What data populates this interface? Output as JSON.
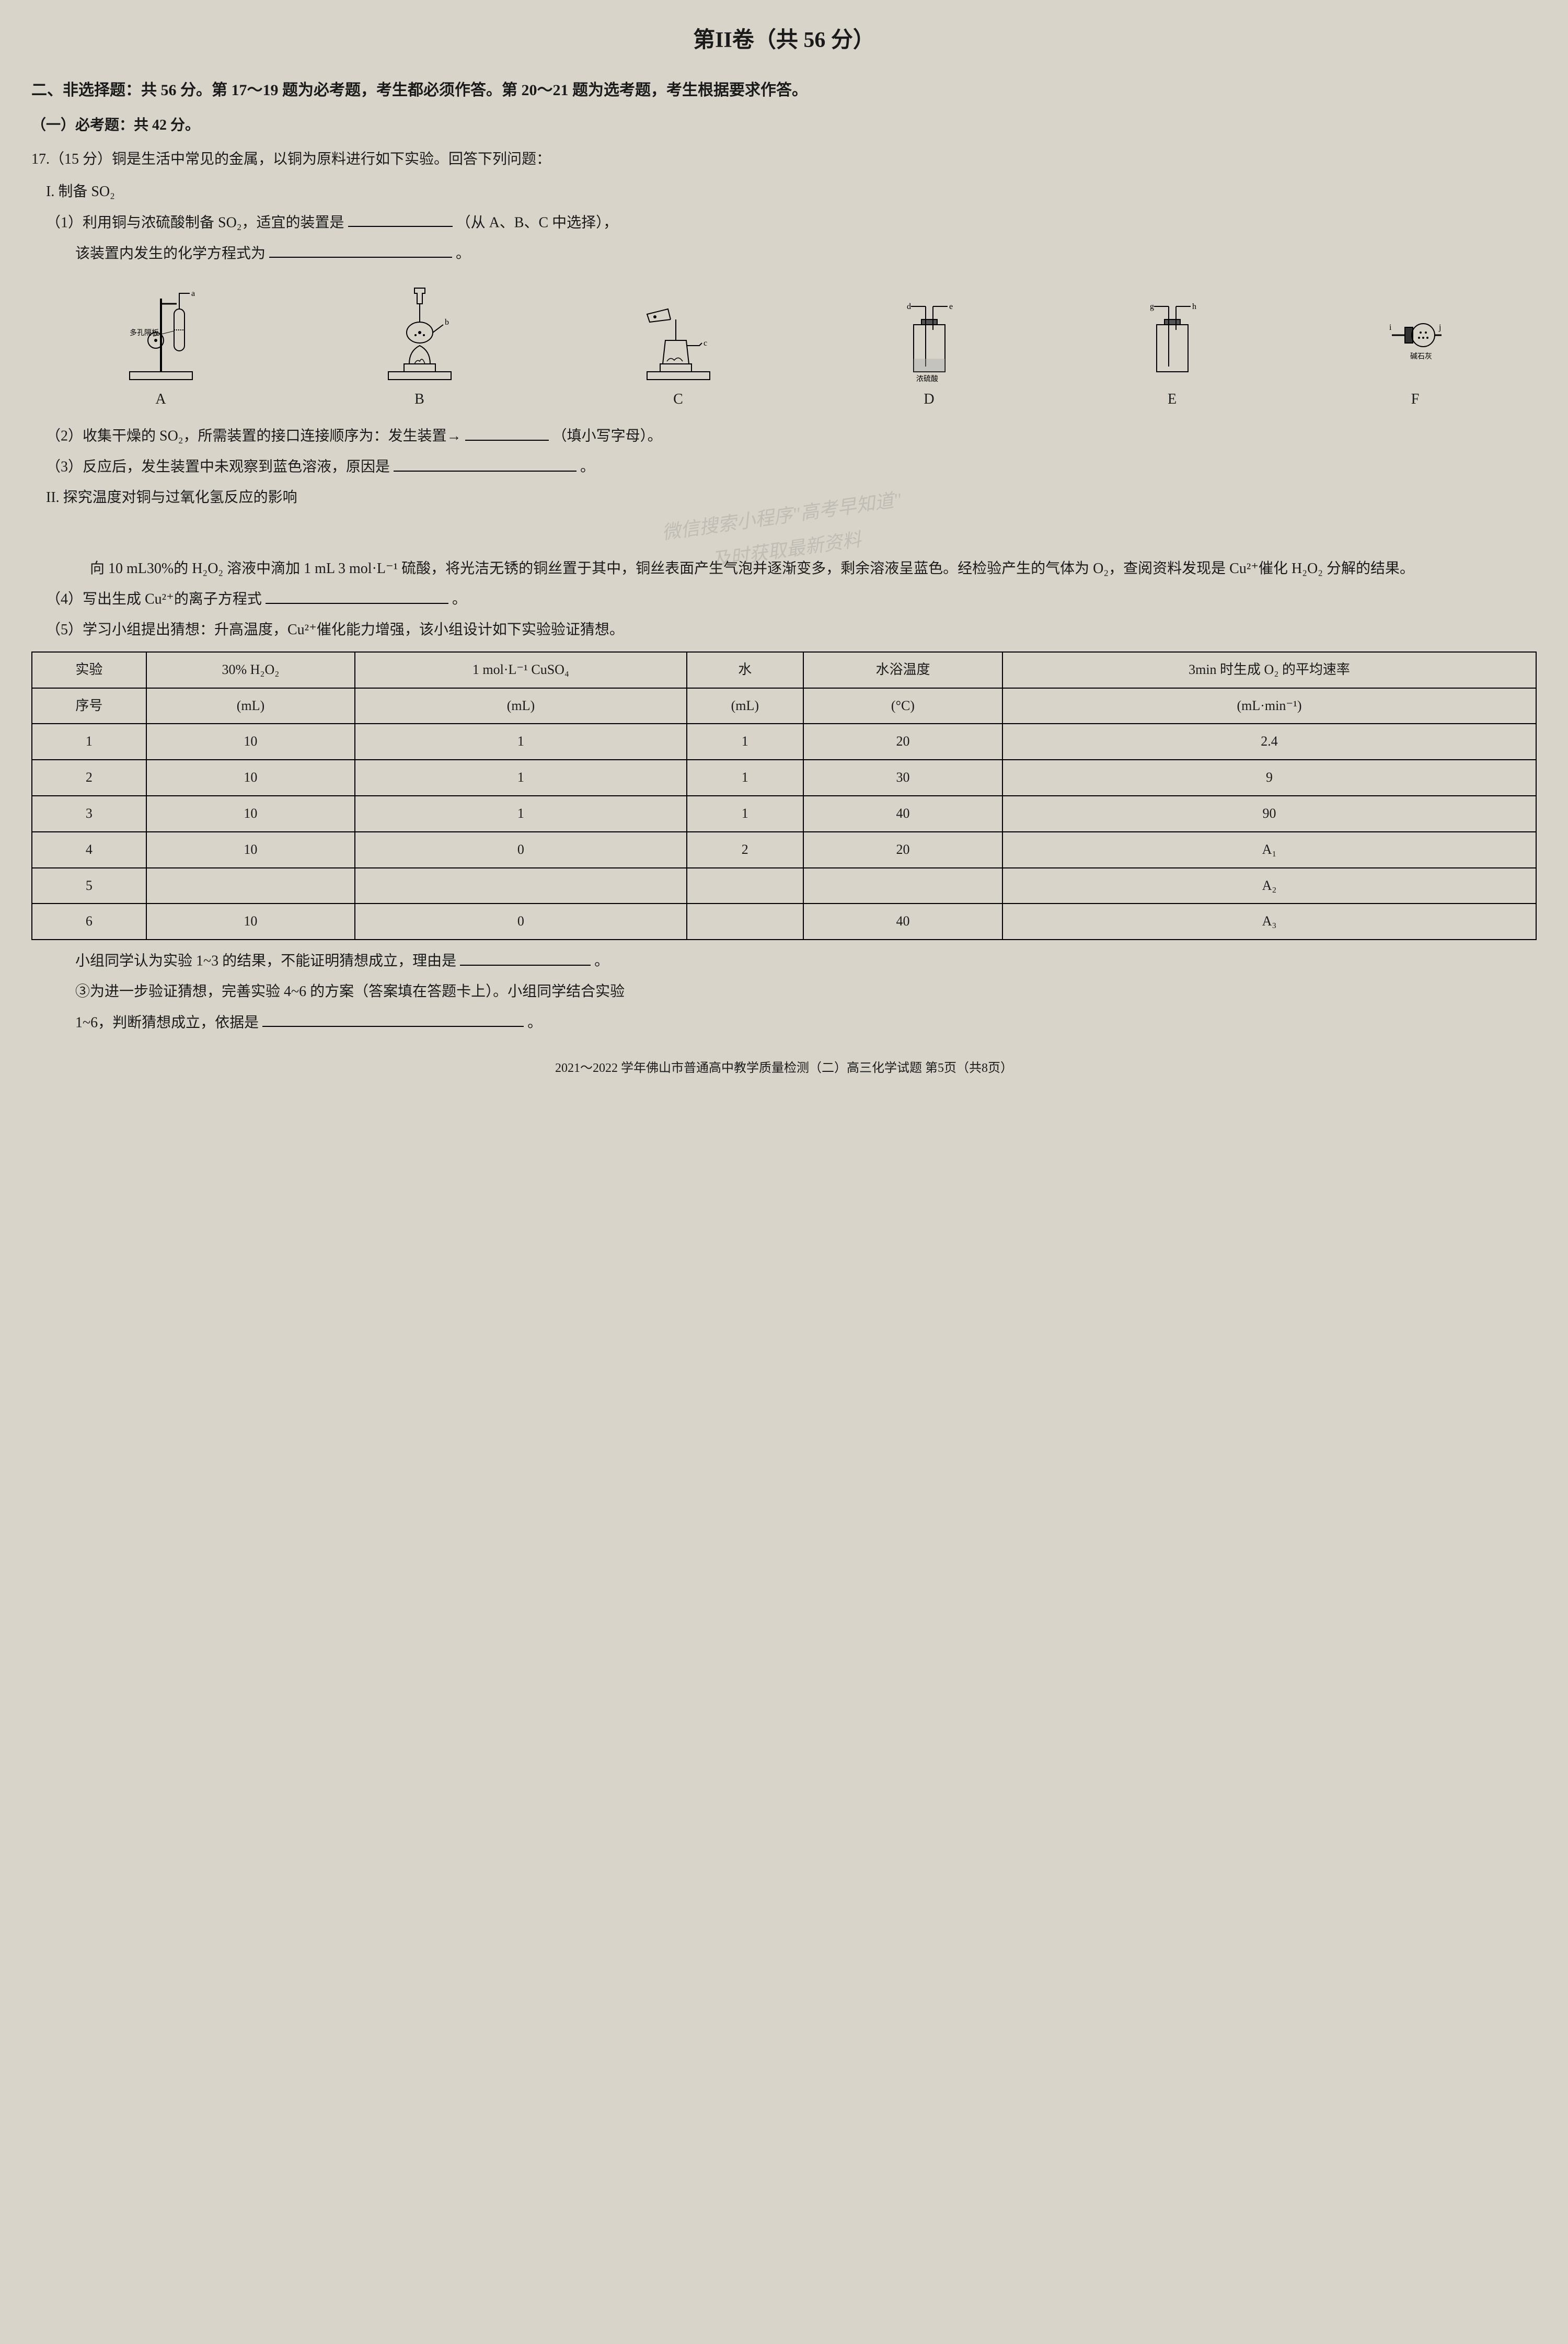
{
  "page": {
    "title": "第II卷（共 56 分）",
    "section_header": "二、非选择题：共 56 分。第 17～19 题为必考题，考生都必须作答。第 20～21 题为选考题，考生根据要求作答。",
    "subsection_a": "（一）必考题：共 42 分。",
    "footer": "2021～2022 学年佛山市普通高中教学质量检测（二）高三化学试题  第5页（共8页）"
  },
  "q17": {
    "header": "17.（15 分）铜是生活中常见的金属，以铜为原料进行如下实验。回答下列问题：",
    "partI_label": "I. 制备 SO₂",
    "item1_pre": "（1）利用铜与浓硫酸制备 SO₂，适宜的装置是",
    "item1_post": "（从 A、B、C 中选择），",
    "item1_line2": "该装置内发生的化学方程式为",
    "item1_period": "。",
    "item2_pre": "（2）收集干燥的 SO₂，所需装置的接口连接顺序为：发生装置→",
    "item2_post": "（填小写字母）。",
    "item3_pre": "（3）反应后，发生装置中未观察到蓝色溶液，原因是",
    "item3_post": "。",
    "partII_label": "II. 探究温度对铜与过氧化氢反应的影响",
    "paragraph": "向 10 mL30%的 H₂O₂ 溶液中滴加 1 mL 3 mol·L⁻¹ 硫酸，将光洁无锈的铜丝置于其中，铜丝表面产生气泡并逐渐变多，剩余溶液呈蓝色。经检验产生的气体为 O₂，查阅资料发现是 Cu²⁺催化 H₂O₂ 分解的结果。",
    "item4_pre": "（4）写出生成 Cu²⁺的离子方程式",
    "item4_post": "。",
    "item5": "（5）学习小组提出猜想：升高温度，Cu²⁺催化能力增强，该小组设计如下实验验证猜想。",
    "after_table1_pre": "小组同学认为实验 1~3 的结果，不能证明猜想成立，理由是",
    "after_table1_post": "。",
    "after_table2": "③为进一步验证猜想，完善实验 4~6 的方案（答案填在答题卡上）。小组同学结合实验",
    "after_table3_pre": "1~6，判断猜想成立，依据是",
    "after_table3_post": "。"
  },
  "diagrams": {
    "labels": {
      "A": "A",
      "B": "B",
      "C": "C",
      "D": "D",
      "E": "E",
      "F": "F"
    },
    "annotations": {
      "a": "a",
      "b": "b",
      "c": "c",
      "d": "d",
      "e": "e",
      "g": "g",
      "h": "h",
      "i": "i",
      "j": "j",
      "porous_plate": "多孔隔板",
      "conc_acid": "浓硫酸",
      "soda_lime": "碱石灰"
    }
  },
  "watermarks": {
    "line1": "微信搜索小程序\"高考早知道\"",
    "line2": "及时获取最新资料"
  },
  "table": {
    "columns": [
      {
        "h1": "实验",
        "h2": "序号"
      },
      {
        "h1": "30% H₂O₂",
        "h2": "(mL)"
      },
      {
        "h1": "1 mol·L⁻¹ CuSO₄",
        "h2": "(mL)"
      },
      {
        "h1": "水",
        "h2": "(mL)"
      },
      {
        "h1": "水浴温度",
        "h2": "(°C)"
      },
      {
        "h1": "3min 时生成 O₂ 的平均速率",
        "h2": "(mL·min⁻¹)"
      }
    ],
    "rows": [
      [
        "1",
        "10",
        "1",
        "1",
        "20",
        "2.4"
      ],
      [
        "2",
        "10",
        "1",
        "1",
        "30",
        "9"
      ],
      [
        "3",
        "10",
        "1",
        "1",
        "40",
        "90"
      ],
      [
        "4",
        "10",
        "0",
        "2",
        "20",
        "A₁"
      ],
      [
        "5",
        "",
        "",
        "",
        "",
        "A₂"
      ],
      [
        "6",
        "10",
        "0",
        "",
        "40",
        "A₃"
      ]
    ]
  }
}
